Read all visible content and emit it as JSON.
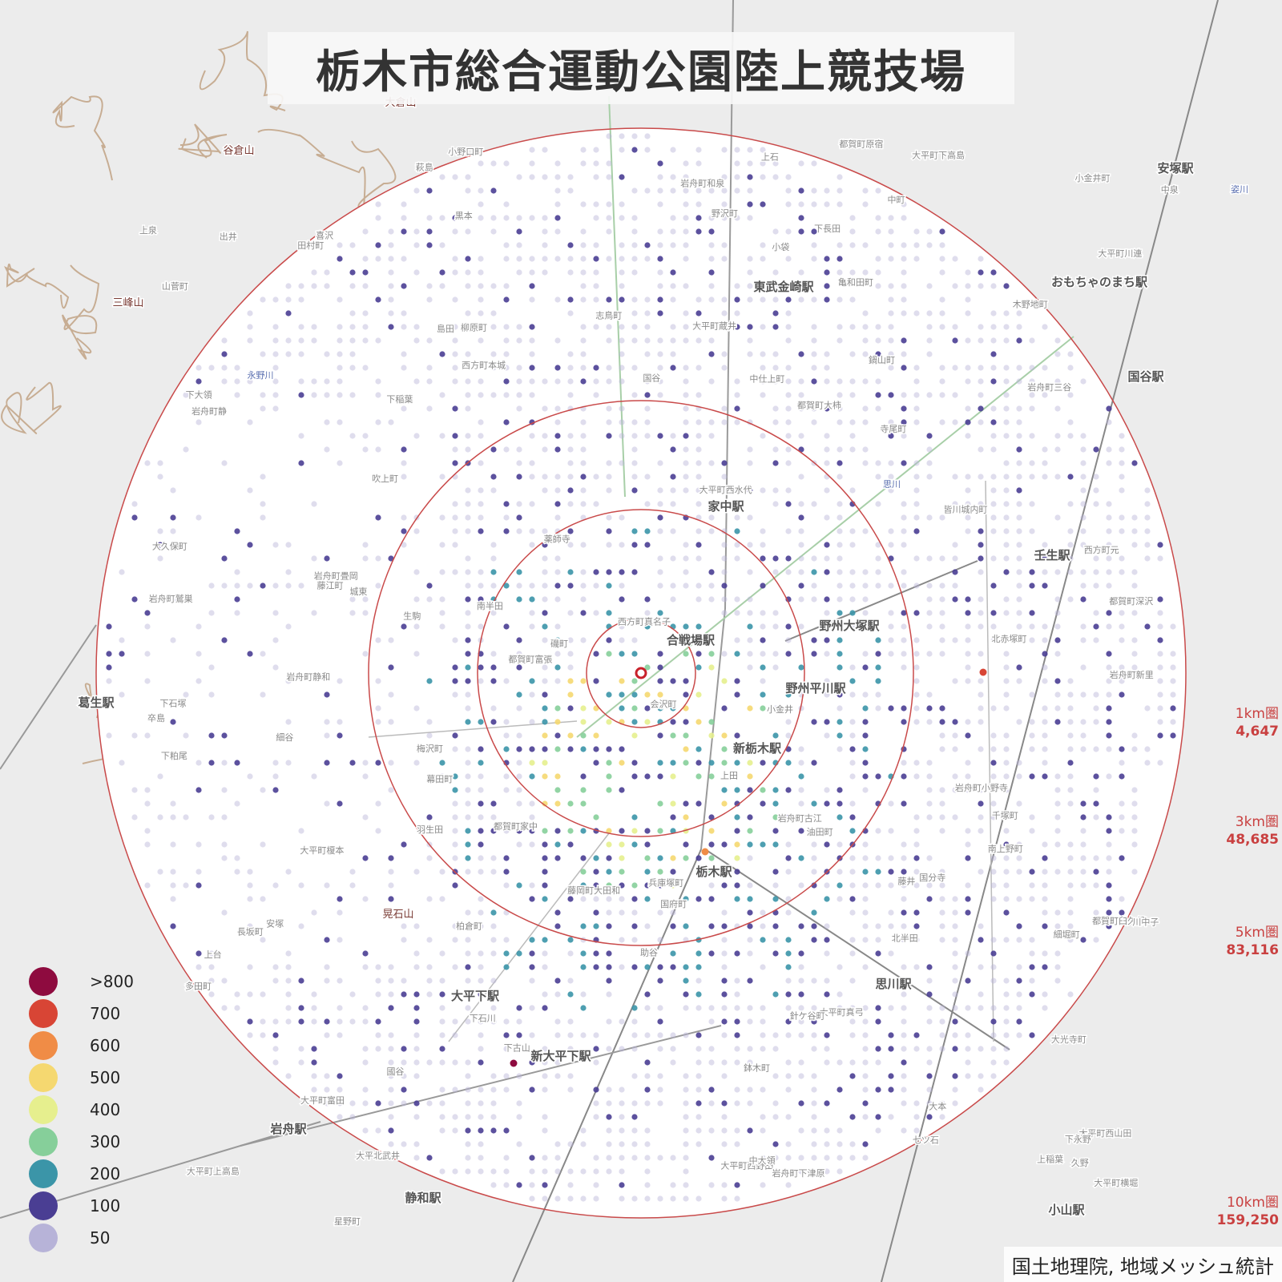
{
  "title": "栃木市総合運動公園陸上競技場",
  "credit": "国土地理院, 地域メッシュ統計",
  "legend": [
    {
      "label": ">800",
      "color": "#8e0b3f"
    },
    {
      "label": "700",
      "color": "#d84535"
    },
    {
      "label": "600",
      "color": "#f08c46"
    },
    {
      "label": "500",
      "color": "#f5d870"
    },
    {
      "label": "400",
      "color": "#e6ef8e"
    },
    {
      "label": "300",
      "color": "#86cf9a"
    },
    {
      "label": "200",
      "color": "#3b95a8"
    },
    {
      "label": "100",
      "color": "#4a3e93"
    },
    {
      "label": "50",
      "color": "#b7b3d8"
    }
  ],
  "ring_stats": [
    {
      "label": "1km圏",
      "value": "4,647"
    },
    {
      "label": "3km圏",
      "value": "48,685"
    },
    {
      "label": "5km圏",
      "value": "83,116"
    },
    {
      "label": "10km圏",
      "value": "159,250"
    }
  ],
  "place_labels": [
    {
      "text": "大倉山",
      "kind": "peak"
    },
    {
      "text": "谷倉山",
      "kind": "peak"
    },
    {
      "text": "三峰山",
      "kind": "peak"
    },
    {
      "text": "晃石山",
      "kind": "peak"
    },
    {
      "text": "永野川",
      "kind": "river"
    },
    {
      "text": "思川",
      "kind": "river"
    },
    {
      "text": "姿川",
      "kind": "river"
    },
    {
      "text": "東武金崎駅",
      "kind": "station"
    },
    {
      "text": "家中駅",
      "kind": "station"
    },
    {
      "text": "合戦場駅",
      "kind": "station"
    },
    {
      "text": "野州大塚駅",
      "kind": "station"
    },
    {
      "text": "野州平川駅",
      "kind": "station"
    },
    {
      "text": "新栃木駅",
      "kind": "station"
    },
    {
      "text": "栃木駅",
      "kind": "station"
    },
    {
      "text": "壬生駅",
      "kind": "station"
    },
    {
      "text": "安塚駅",
      "kind": "station"
    },
    {
      "text": "国谷駅",
      "kind": "station"
    },
    {
      "text": "葛生駅",
      "kind": "station"
    },
    {
      "text": "思川駅",
      "kind": "station"
    },
    {
      "text": "大平下駅",
      "kind": "station"
    },
    {
      "text": "新大平下駅",
      "kind": "station"
    },
    {
      "text": "岩舟駅",
      "kind": "station"
    },
    {
      "text": "静和駅",
      "kind": "station"
    },
    {
      "text": "小山駅",
      "kind": "station"
    },
    {
      "text": "おもちゃのまち駅",
      "kind": "station"
    },
    {
      "text": "西方町本城",
      "kind": "town"
    },
    {
      "text": "西方町元",
      "kind": "town"
    },
    {
      "text": "都賀町大柿",
      "kind": "town"
    },
    {
      "text": "都賀町深沢",
      "kind": "town"
    },
    {
      "text": "都賀町富張",
      "kind": "town"
    },
    {
      "text": "都賀町臼久保",
      "kind": "town"
    },
    {
      "text": "都賀町家中",
      "kind": "town"
    },
    {
      "text": "都賀町原宿",
      "kind": "town"
    },
    {
      "text": "細堀町",
      "kind": "town"
    },
    {
      "text": "木野地町",
      "kind": "town"
    },
    {
      "text": "吹上町",
      "kind": "town"
    },
    {
      "text": "千塚町",
      "kind": "town"
    },
    {
      "text": "皆川城内町",
      "kind": "town"
    },
    {
      "text": "柏倉町",
      "kind": "town"
    },
    {
      "text": "長坂町",
      "kind": "town"
    },
    {
      "text": "会沢町",
      "kind": "town"
    },
    {
      "text": "梅沢町",
      "kind": "town"
    },
    {
      "text": "大久保町",
      "kind": "town"
    },
    {
      "text": "小野口町",
      "kind": "town"
    },
    {
      "text": "志鳥町",
      "kind": "town"
    },
    {
      "text": "大平町西山田",
      "kind": "town"
    },
    {
      "text": "大平町蔵井",
      "kind": "town"
    },
    {
      "text": "大平町富田",
      "kind": "town"
    },
    {
      "text": "大平町榎本",
      "kind": "town"
    },
    {
      "text": "大平町西水代",
      "kind": "town"
    },
    {
      "text": "大平町下高島",
      "kind": "town"
    },
    {
      "text": "大平町上高島",
      "kind": "town"
    },
    {
      "text": "大平町真弓",
      "kind": "town"
    },
    {
      "text": "大平町西野田",
      "kind": "town"
    },
    {
      "text": "大平町川連",
      "kind": "town"
    },
    {
      "text": "大平北武井",
      "kind": "town"
    },
    {
      "text": "大平町横堀",
      "kind": "town"
    },
    {
      "text": "岩舟町静和",
      "kind": "town"
    },
    {
      "text": "岩舟町和泉",
      "kind": "town"
    },
    {
      "text": "岩舟町畳岡",
      "kind": "town"
    },
    {
      "text": "岩舟町鷲巣",
      "kind": "town"
    },
    {
      "text": "岩舟町新里",
      "kind": "town"
    },
    {
      "text": "岩舟町古江",
      "kind": "town"
    },
    {
      "text": "岩舟町三谷",
      "kind": "town"
    },
    {
      "text": "岩舟町小野寺",
      "kind": "town"
    },
    {
      "text": "岩舟町下津原",
      "kind": "town"
    },
    {
      "text": "岩舟町静",
      "kind": "town"
    },
    {
      "text": "藤岡町大田和",
      "kind": "town"
    },
    {
      "text": "国府町",
      "kind": "town"
    },
    {
      "text": "大光寺町",
      "kind": "town"
    },
    {
      "text": "田村町",
      "kind": "town"
    },
    {
      "text": "中仕上町",
      "kind": "town"
    },
    {
      "text": "寺尾町",
      "kind": "town"
    },
    {
      "text": "柳原町",
      "kind": "town"
    },
    {
      "text": "國谷",
      "kind": "town"
    },
    {
      "text": "上稲葉",
      "kind": "town"
    },
    {
      "text": "下稲葉",
      "kind": "town"
    },
    {
      "text": "七ツ石",
      "kind": "town"
    },
    {
      "text": "亀和田町",
      "kind": "town"
    },
    {
      "text": "羽生田",
      "kind": "town"
    },
    {
      "text": "助谷",
      "kind": "town"
    },
    {
      "text": "国谷",
      "kind": "town"
    },
    {
      "text": "藤井",
      "kind": "town"
    },
    {
      "text": "国分寺",
      "kind": "town"
    },
    {
      "text": "小金井",
      "kind": "town"
    },
    {
      "text": "川中子",
      "kind": "town"
    },
    {
      "text": "小金井町",
      "kind": "town"
    },
    {
      "text": "薬師寺",
      "kind": "town"
    },
    {
      "text": "黒本",
      "kind": "town"
    },
    {
      "text": "島田",
      "kind": "town"
    },
    {
      "text": "喜沢",
      "kind": "town"
    },
    {
      "text": "出井",
      "kind": "town"
    },
    {
      "text": "城東",
      "kind": "town"
    },
    {
      "text": "萩島",
      "kind": "town"
    },
    {
      "text": "小袋",
      "kind": "town"
    },
    {
      "text": "上泉",
      "kind": "town"
    },
    {
      "text": "下石塚",
      "kind": "town"
    },
    {
      "text": "生駒",
      "kind": "town"
    },
    {
      "text": "卒島",
      "kind": "town"
    },
    {
      "text": "大本",
      "kind": "town"
    },
    {
      "text": "南半田",
      "kind": "town"
    },
    {
      "text": "野沢町",
      "kind": "town"
    },
    {
      "text": "北赤塚町",
      "kind": "town"
    },
    {
      "text": "藤江町",
      "kind": "town"
    },
    {
      "text": "中泉",
      "kind": "town"
    },
    {
      "text": "上田",
      "kind": "town"
    },
    {
      "text": "安塚",
      "kind": "town"
    },
    {
      "text": "針ケ谷町",
      "kind": "town"
    },
    {
      "text": "幕田町",
      "kind": "town"
    },
    {
      "text": "兵庫塚町",
      "kind": "town"
    },
    {
      "text": "南上野町",
      "kind": "town"
    },
    {
      "text": "下石川",
      "kind": "town"
    },
    {
      "text": "油田町",
      "kind": "town"
    },
    {
      "text": "久野",
      "kind": "town"
    },
    {
      "text": "下粕尾",
      "kind": "town"
    },
    {
      "text": "下永野",
      "kind": "town"
    },
    {
      "text": "星野町",
      "kind": "town"
    },
    {
      "text": "鍋山町",
      "kind": "town"
    },
    {
      "text": "鉢木町",
      "kind": "town"
    },
    {
      "text": "山菅町",
      "kind": "town"
    },
    {
      "text": "中町",
      "kind": "town"
    },
    {
      "text": "多田町",
      "kind": "town"
    },
    {
      "text": "北半田",
      "kind": "town"
    },
    {
      "text": "磯町",
      "kind": "town"
    },
    {
      "text": "上石",
      "kind": "town"
    },
    {
      "text": "下長田",
      "kind": "town"
    },
    {
      "text": "上台",
      "kind": "town"
    },
    {
      "text": "中大領",
      "kind": "town"
    },
    {
      "text": "細谷",
      "kind": "town"
    },
    {
      "text": "下大領",
      "kind": "town"
    },
    {
      "text": "下古山",
      "kind": "town"
    },
    {
      "text": "西方町真名子",
      "kind": "town"
    }
  ]
}
